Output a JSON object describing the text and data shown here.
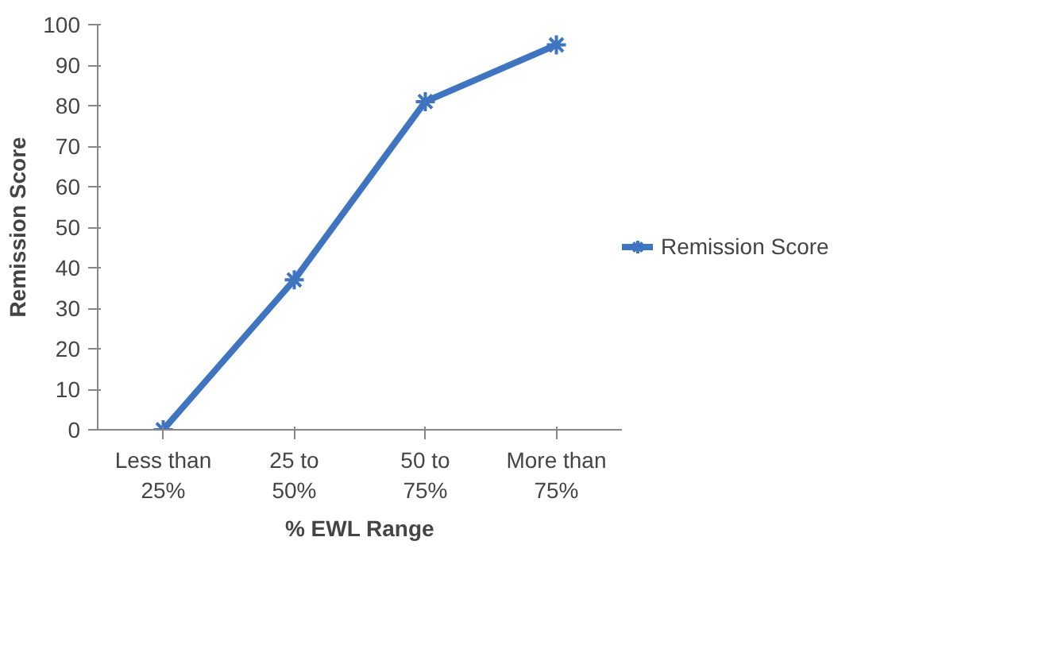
{
  "chart_data": {
    "type": "line",
    "xlabel": "% EWL Range",
    "ylabel": "Remission Score",
    "categories": [
      "Less than 25%",
      "25 to 50%",
      "50 to 75%",
      "More than 75%"
    ],
    "series": [
      {
        "name": "Remission Score",
        "color": "#3f74c0",
        "values": [
          0,
          37,
          81,
          95
        ]
      }
    ],
    "ylim": [
      0,
      100
    ],
    "yticks": [
      0,
      10,
      20,
      30,
      40,
      50,
      60,
      70,
      80,
      90,
      100
    ],
    "legend": "right",
    "grid": false,
    "marker": "cross",
    "line_style": "solid"
  }
}
